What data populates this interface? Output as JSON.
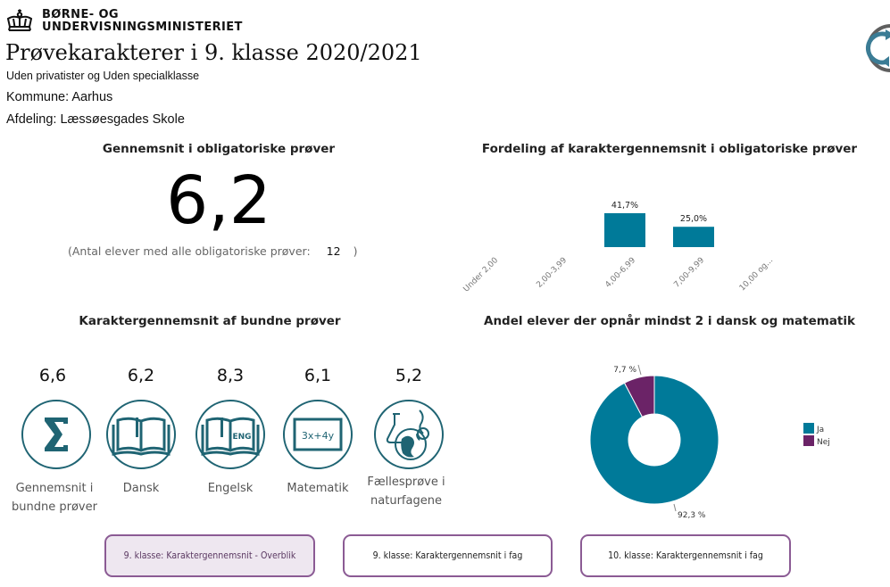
{
  "header": {
    "ministry_line1": "BØRNE- OG",
    "ministry_line2": "UNDERVISNINGSMINISTERIET",
    "title": "Prøvekarakterer i 9. klasse 2020/2021",
    "subtitle": "Uden privatister og Uden specialklasse",
    "kommune": "Kommune: Aarhus",
    "afdeling": "Afdeling: Læssøesgades Skole",
    "logo_icon": "crown-icon",
    "refresh_icon": "refresh-icon"
  },
  "average": {
    "title": "Gennemsnit i obligatoriske prøver",
    "value": "6,2",
    "count_prefix": "(Antal elever med alle obligatoriske prøver:",
    "count_value": "12",
    "count_suffix": ")"
  },
  "chart_data": [
    {
      "type": "bar",
      "title": "Fordeling af karaktergennemsnit i obligatoriske prøver",
      "categories": [
        "Under 2,00",
        "2,00-3,99",
        "4,00-6,99",
        "7,00-9,99",
        "10,00 og..."
      ],
      "values": [
        null,
        null,
        41.7,
        25.0,
        null
      ],
      "value_labels": [
        "",
        "",
        "41,7%",
        "25,0%",
        ""
      ],
      "xlabel": "",
      "ylabel": "",
      "unit": "%",
      "grid": false,
      "color": "#007a99"
    },
    {
      "type": "pie",
      "title": "Andel elever der opnår mindst 2 i dansk og matematik",
      "categories": [
        "Ja",
        "Nej"
      ],
      "values": [
        92.3,
        7.7
      ],
      "value_labels": [
        "92,3 %",
        "7,7 %"
      ],
      "colors": [
        "#007a99",
        "#6b2367"
      ],
      "legend": "right",
      "donut": true
    }
  ],
  "subjects": {
    "title": "Karaktergennemsnit af bundne prøver",
    "items": [
      {
        "value": "6,6",
        "label_line1": "Gennemsnit i",
        "label_line2": "bundne prøver",
        "icon": "sigma-icon"
      },
      {
        "value": "6,2",
        "label_line1": "Dansk",
        "label_line2": "",
        "icon": "book-icon"
      },
      {
        "value": "8,3",
        "label_line1": "Engelsk",
        "label_line2": "",
        "icon": "book-eng-icon"
      },
      {
        "value": "6,1",
        "label_line1": "Matematik",
        "label_line2": "",
        "icon": "blackboard-icon"
      },
      {
        "value": "5,2",
        "label_line1": "Fællesprøve i",
        "label_line2": "naturfagene",
        "icon": "science-globe-icon"
      }
    ],
    "icon_color": "#1f6473"
  },
  "eng_glyph": "ENG",
  "math_glyph": "3x+4y",
  "nav": {
    "buttons": [
      {
        "label": "9. klasse: Karaktergennemsnit - Overblik",
        "active": true
      },
      {
        "label": "9. klasse: Karaktergennemsnit i fag",
        "active": false
      },
      {
        "label": "10. klasse: Karaktergennemsnit i fag",
        "active": false
      }
    ],
    "border_color": "#8b5b94"
  }
}
